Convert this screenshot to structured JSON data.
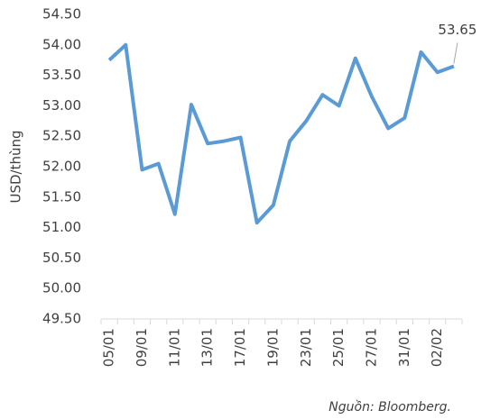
{
  "chart_data": {
    "type": "line",
    "ylabel": "USD/thùng",
    "source": "Nguồn: Bloomberg.",
    "categories": [
      "05/01",
      null,
      "09/01",
      null,
      "11/01",
      null,
      "13/01",
      null,
      "17/01",
      null,
      "19/01",
      null,
      "23/01",
      null,
      "25/01",
      null,
      "27/01",
      null,
      "31/01",
      null,
      "02/02",
      null
    ],
    "series": [
      {
        "name": "USD/thùng",
        "color": "#5b9bd5",
        "values": [
          53.75,
          54.0,
          51.95,
          52.05,
          51.22,
          53.02,
          52.38,
          52.42,
          52.48,
          51.08,
          51.37,
          52.42,
          52.75,
          53.18,
          53.0,
          53.78,
          53.15,
          52.63,
          52.8,
          53.88,
          53.55,
          53.65
        ]
      }
    ],
    "ylim": [
      49.5,
      54.5
    ],
    "yticks": [
      {
        "value": 49.5,
        "label": "49.50"
      },
      {
        "value": 50,
        "label": "50.00"
      },
      {
        "value": 50.5,
        "label": "50.50"
      },
      {
        "value": 51,
        "label": "51.00"
      },
      {
        "value": 51.5,
        "label": "51.50"
      },
      {
        "value": 52,
        "label": "52.00"
      },
      {
        "value": 52.5,
        "label": "52.50"
      },
      {
        "value": 53,
        "label": "53.00"
      },
      {
        "value": 53.5,
        "label": "53.50"
      },
      {
        "value": 54,
        "label": "54.00"
      },
      {
        "value": 54.5,
        "label": "54.50"
      }
    ],
    "grid": false
  }
}
